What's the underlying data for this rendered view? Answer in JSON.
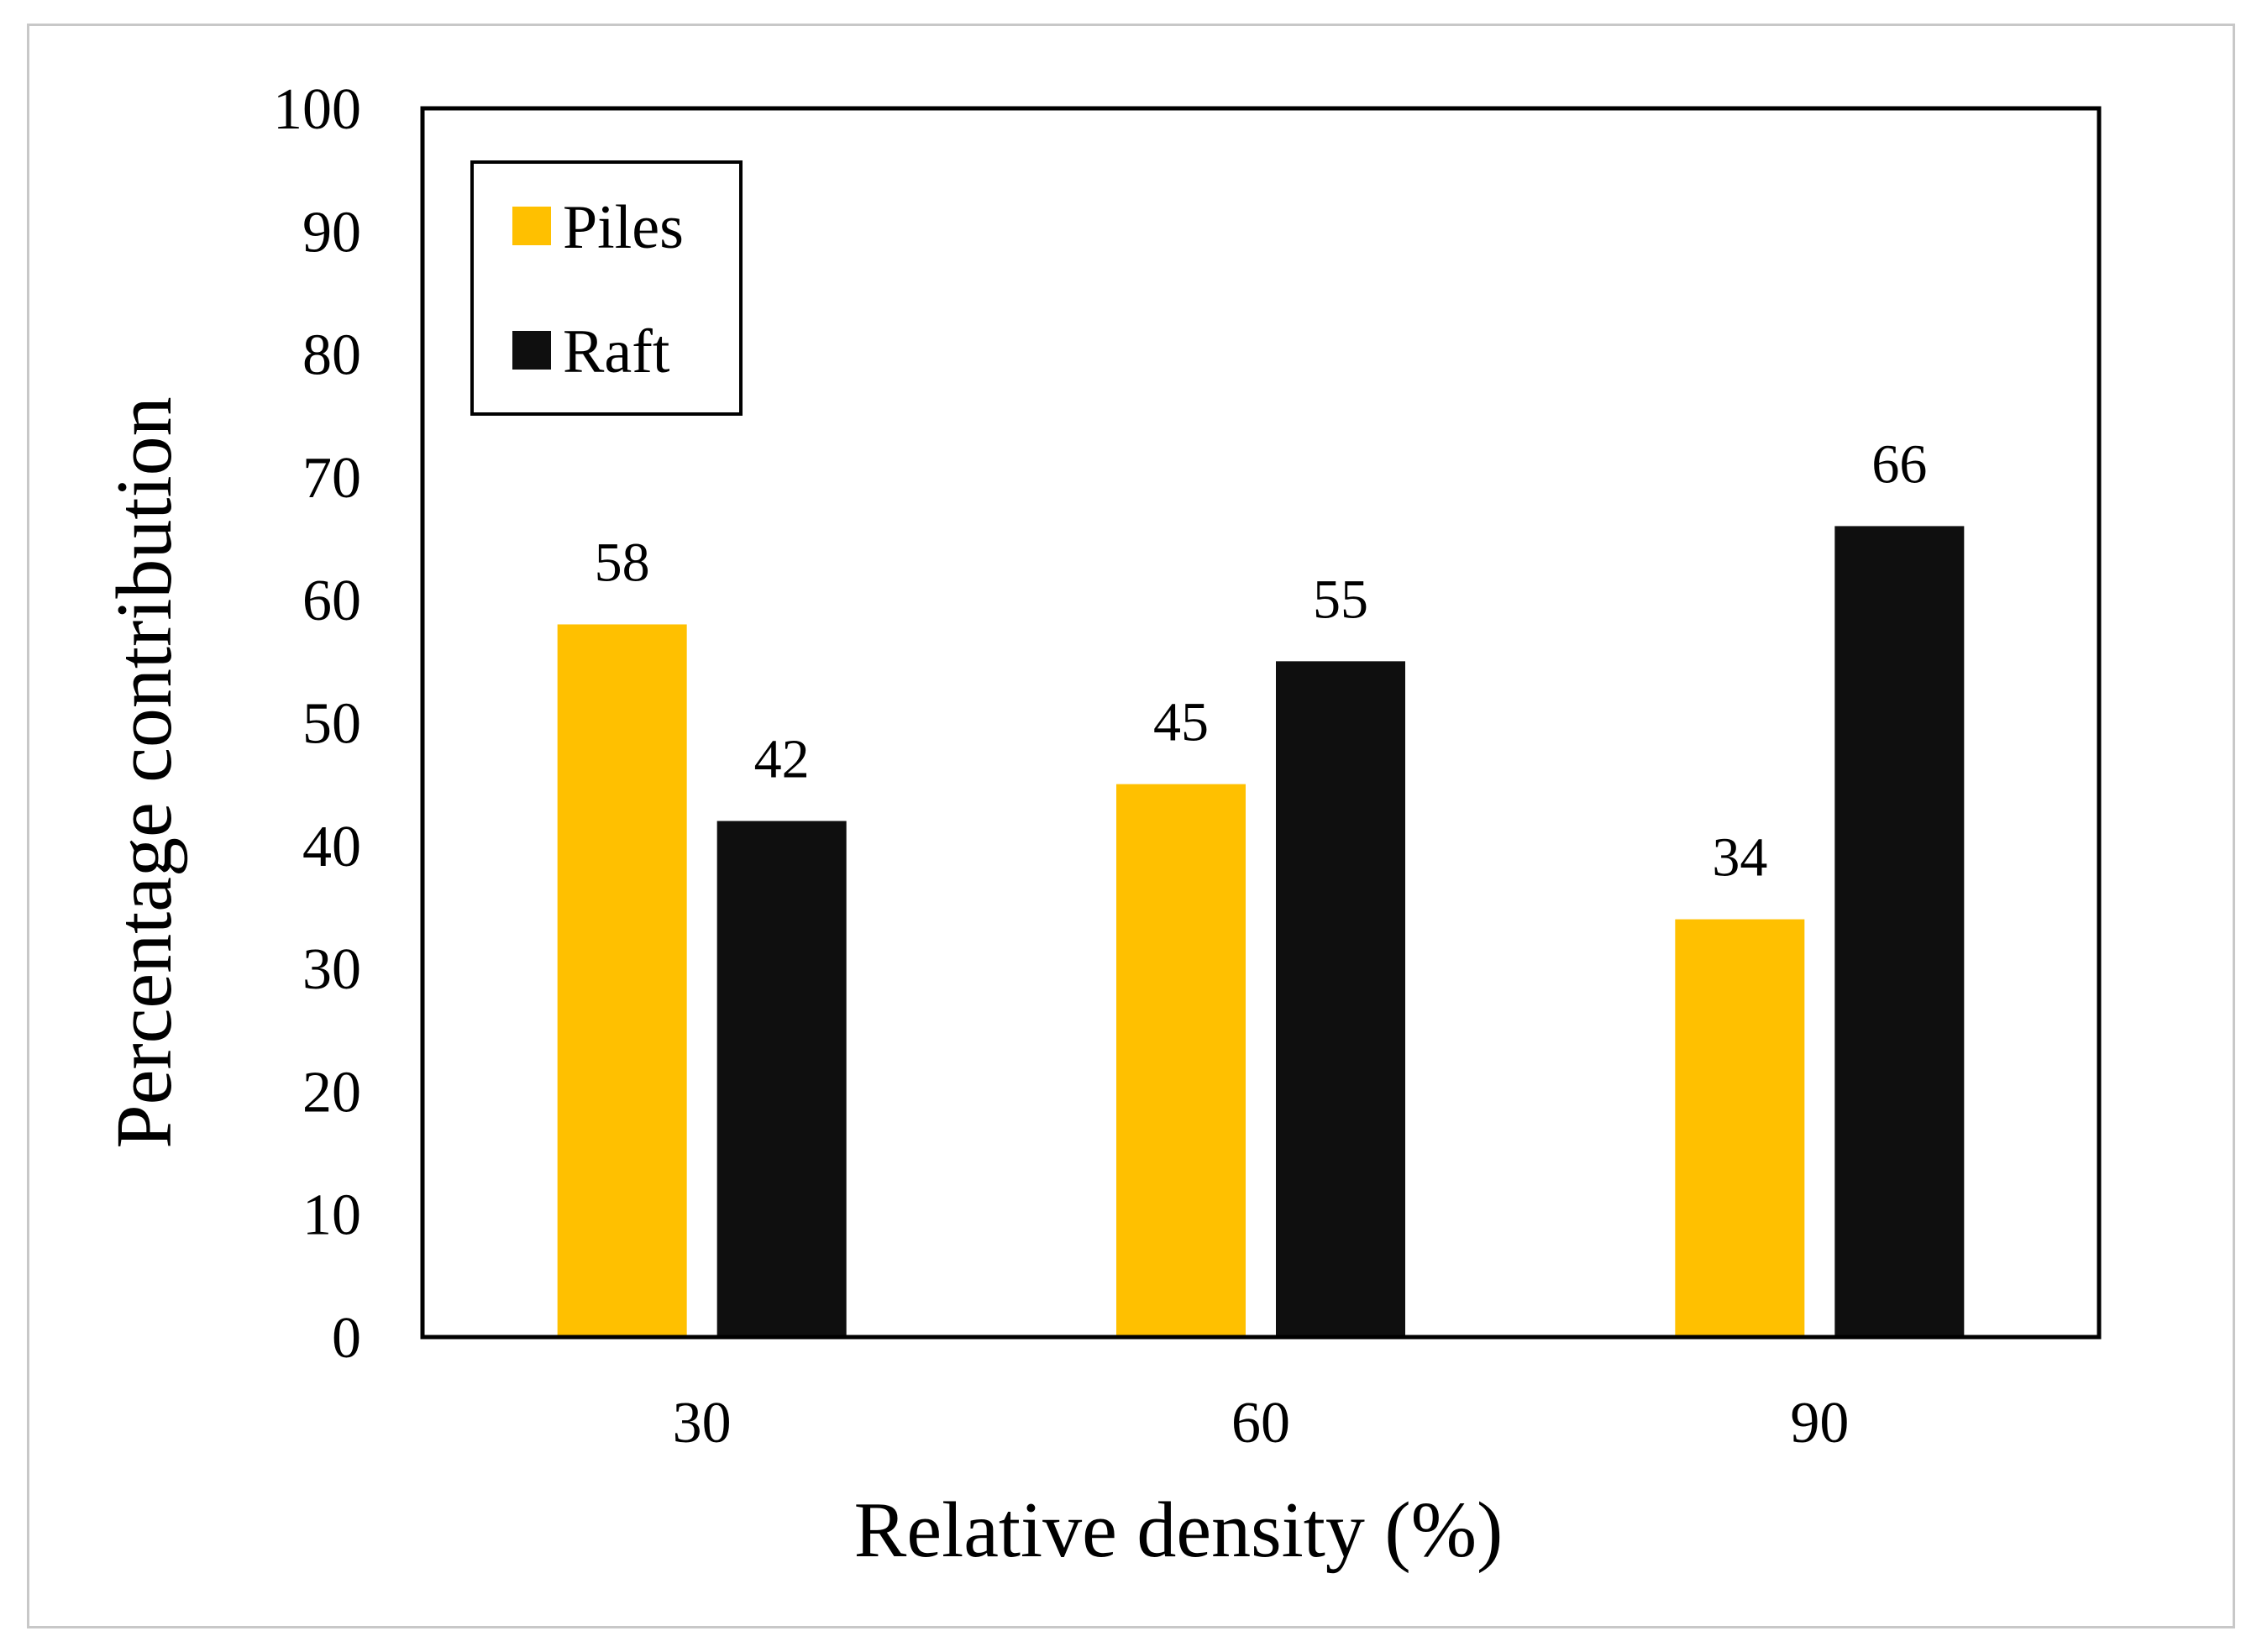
{
  "chart_data": {
    "type": "bar",
    "title": "",
    "xlabel": "Relative density (%)",
    "ylabel": "Percentage contribution",
    "categories": [
      "30",
      "60",
      "90"
    ],
    "series": [
      {
        "name": "Piles",
        "color": "#FFC000",
        "values": [
          58,
          45,
          34
        ]
      },
      {
        "name": "Raft",
        "color": "#0F0F0F",
        "values": [
          42,
          55,
          66
        ]
      }
    ],
    "ylim": [
      0,
      100
    ],
    "yticks": [
      "0",
      "10",
      "20",
      "30",
      "40",
      "50",
      "60",
      "70",
      "80",
      "90",
      "100"
    ],
    "data_labels": [
      [
        "58",
        "45",
        "34"
      ],
      [
        "42",
        "55",
        "66"
      ]
    ],
    "legend_position": "top-left",
    "grid": false
  }
}
